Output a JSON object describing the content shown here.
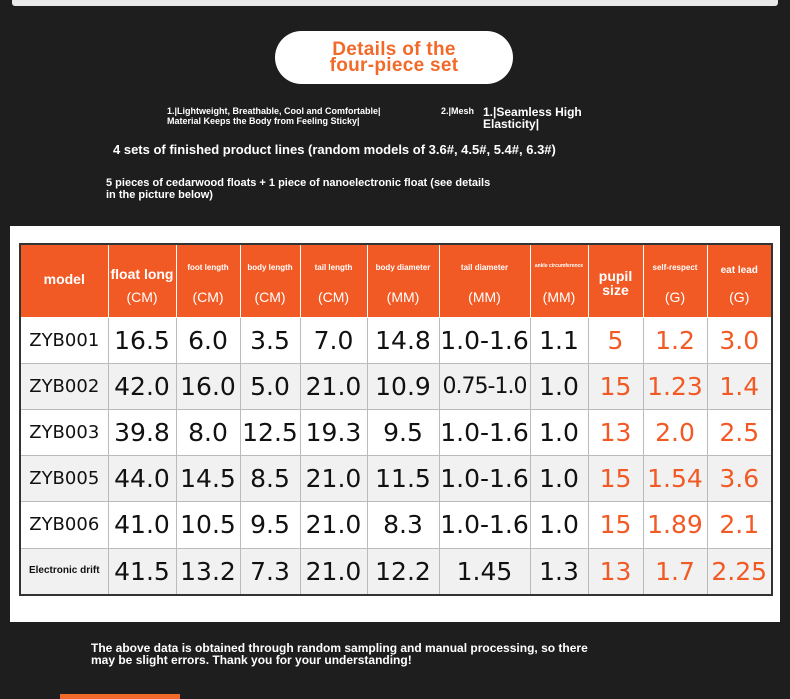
{
  "header": {
    "title_line1": "Details of the",
    "title_line2": "four-piece set"
  },
  "features": {
    "a": "1.|Lightweight, Breathable, Cool and Comfortable|\nMaterial Keeps the Body from Feeling Sticky|",
    "b": "2.|Mesh",
    "c": "1.|Seamless High\nElasticity|"
  },
  "lines": {
    "sets": "4 sets of finished product lines (random models of 3.6#, 4.5#, 5.4#, 6.3#)",
    "floats": "5 pieces of cedarwood floats + 1 piece of nanoelectronic float (see details in the picture below)"
  },
  "table": {
    "headers": [
      {
        "label": "model",
        "unit": ""
      },
      {
        "label": "float long",
        "unit": "(CM)"
      },
      {
        "label": "foot length",
        "unit": "(CM)"
      },
      {
        "label": "body length",
        "unit": "(CM)"
      },
      {
        "label": "tail length",
        "unit": "(CM)"
      },
      {
        "label": "body diameter",
        "unit": "(MM)"
      },
      {
        "label": "tail diameter",
        "unit": "(MM)"
      },
      {
        "label": "ankle circumference",
        "unit": "(MM)"
      },
      {
        "label": "pupil size",
        "unit": ""
      },
      {
        "label": "self-respect",
        "unit": "(G)"
      },
      {
        "label": "eat lead",
        "unit": "(G)"
      }
    ],
    "rows": [
      [
        "ZYB001",
        "16.5",
        "6.0",
        "3.5",
        "7.0",
        "14.8",
        "1.0-1.6",
        "1.1",
        "5",
        "1.2",
        "3.0"
      ],
      [
        "ZYB002",
        "42.0",
        "16.0",
        "5.0",
        "21.0",
        "10.9",
        "0.75-1.0",
        "1.0",
        "15",
        "1.23",
        "1.4"
      ],
      [
        "ZYB003",
        "39.8",
        "8.0",
        "12.5",
        "19.3",
        "9.5",
        "1.0-1.6",
        "1.0",
        "13",
        "2.0",
        "2.5"
      ],
      [
        "ZYB005",
        "44.0",
        "14.5",
        "8.5",
        "21.0",
        "11.5",
        "1.0-1.6",
        "1.0",
        "15",
        "1.54",
        "3.6"
      ],
      [
        "ZYB006",
        "41.0",
        "10.5",
        "9.5",
        "21.0",
        "8.3",
        "1.0-1.6",
        "1.0",
        "15",
        "1.89",
        "2.1"
      ],
      [
        "Electronic drift",
        "41.5",
        "13.2",
        "7.3",
        "21.0",
        "12.2",
        "1.45",
        "1.3",
        "13",
        "1.7",
        "2.25"
      ]
    ]
  },
  "footnote": "The above data is obtained through random sampling and manual processing, so there may be slight errors. Thank you for your understanding!",
  "colors": {
    "accent": "#f25a25",
    "background": "#1e1e1e"
  }
}
